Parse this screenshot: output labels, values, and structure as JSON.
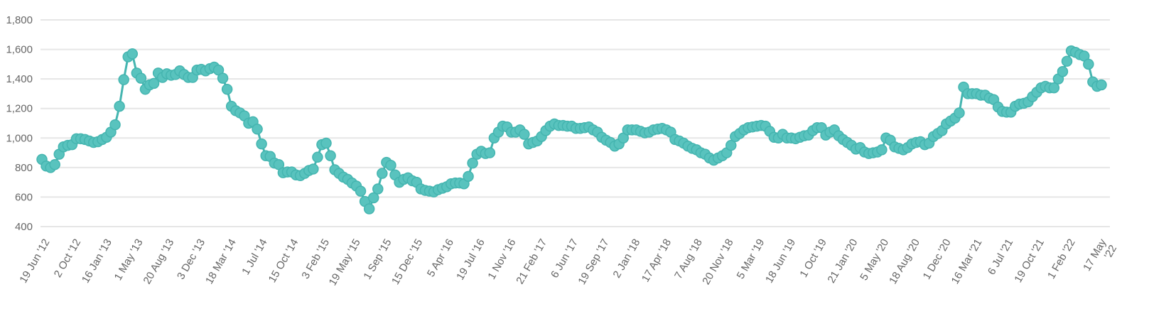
{
  "chart_data": {
    "type": "line",
    "title": "",
    "xlabel": "",
    "ylabel": "",
    "ylim": [
      400,
      1800
    ],
    "yticks": [
      "400",
      "600",
      "800",
      "1,000",
      "1,200",
      "1,400",
      "1,600",
      "1,800"
    ],
    "grid": true,
    "color": "#45b5b0",
    "marker_color": "#59c3be",
    "x_tick_labels": [
      [
        "19 Jun '12"
      ],
      [
        "2 Oct '12"
      ],
      [
        "16 Jan '13"
      ],
      [
        "1 May '13"
      ],
      [
        "20 Aug '13"
      ],
      [
        "3 Dec '13"
      ],
      [
        "18 Mar '14"
      ],
      [
        "1 Jul '14"
      ],
      [
        "15 Oct '14"
      ],
      [
        "3 Feb '15"
      ],
      [
        "19 May '15"
      ],
      [
        "1 Sep '15"
      ],
      [
        "15 Dec '15"
      ],
      [
        "5 Apr '16"
      ],
      [
        "19 Jul '16"
      ],
      [
        "1 Nov '16"
      ],
      [
        "21 Feb '17"
      ],
      [
        "6 Jun '17"
      ],
      [
        "19 Sep '17"
      ],
      [
        "2 Jan '18"
      ],
      [
        "17 Apr '18"
      ],
      [
        "7 Aug '18"
      ],
      [
        "20 Nov '18"
      ],
      [
        "5 Mar '19"
      ],
      [
        "18 Jun '19"
      ],
      [
        "1 Oct '19"
      ],
      [
        "21 Jan '20"
      ],
      [
        "5 May '20"
      ],
      [
        "18 Aug '20"
      ],
      [
        "1 Dec '20"
      ],
      [
        "16 Mar '21"
      ],
      [
        "6 Jul '21"
      ],
      [
        "19 Oct '21"
      ],
      [
        "1 Feb '22"
      ],
      [
        "17 May",
        "'22"
      ]
    ],
    "series": [
      {
        "values": [
          855,
          810,
          800,
          820,
          890,
          940,
          950,
          955,
          995,
          995,
          990,
          980,
          970,
          975,
          990,
          1005,
          1040,
          1090,
          1215,
          1395,
          1550,
          1570,
          1440,
          1405,
          1330,
          1360,
          1370,
          1440,
          1410,
          1435,
          1425,
          1430,
          1455,
          1430,
          1410,
          1410,
          1460,
          1465,
          1455,
          1470,
          1480,
          1460,
          1405,
          1330,
          1215,
          1185,
          1170,
          1150,
          1100,
          1110,
          1060,
          960,
          880,
          875,
          830,
          820,
          765,
          770,
          770,
          750,
          745,
          760,
          780,
          790,
          870,
          955,
          965,
          880,
          785,
          760,
          735,
          720,
          695,
          675,
          640,
          570,
          520,
          595,
          655,
          760,
          835,
          815,
          750,
          700,
          720,
          730,
          710,
          700,
          655,
          645,
          640,
          635,
          650,
          660,
          670,
          690,
          695,
          695,
          690,
          740,
          830,
          890,
          910,
          895,
          900,
          1000,
          1040,
          1080,
          1075,
          1040,
          1040,
          1055,
          1025,
          960,
          970,
          980,
          1010,
          1050,
          1080,
          1095,
          1085,
          1085,
          1080,
          1080,
          1065,
          1065,
          1070,
          1075,
          1055,
          1040,
          1005,
          985,
          970,
          945,
          960,
          1000,
          1055,
          1055,
          1055,
          1045,
          1035,
          1040,
          1055,
          1060,
          1065,
          1055,
          1040,
          990,
          980,
          965,
          945,
          930,
          920,
          900,
          890,
          865,
          850,
          865,
          880,
          900,
          950,
          1010,
          1030,
          1055,
          1070,
          1075,
          1080,
          1085,
          1080,
          1045,
          1005,
          1000,
          1025,
          1000,
          1000,
          995,
          1005,
          1015,
          1020,
          1050,
          1070,
          1070,
          1020,
          1040,
          1055,
          1015,
          990,
          970,
          950,
          925,
          935,
          905,
          895,
          900,
          905,
          920,
          1000,
          985,
          940,
          930,
          920,
          935,
          960,
          970,
          975,
          955,
          965,
          1010,
          1030,
          1050,
          1095,
          1115,
          1135,
          1170,
          1345,
          1300,
          1300,
          1300,
          1290,
          1290,
          1270,
          1260,
          1210,
          1180,
          1175,
          1175,
          1215,
          1230,
          1235,
          1245,
          1280,
          1310,
          1340,
          1350,
          1340,
          1340,
          1400,
          1450,
          1520,
          1590,
          1580,
          1565,
          1555,
          1500,
          1380,
          1350,
          1360
        ]
      }
    ]
  }
}
